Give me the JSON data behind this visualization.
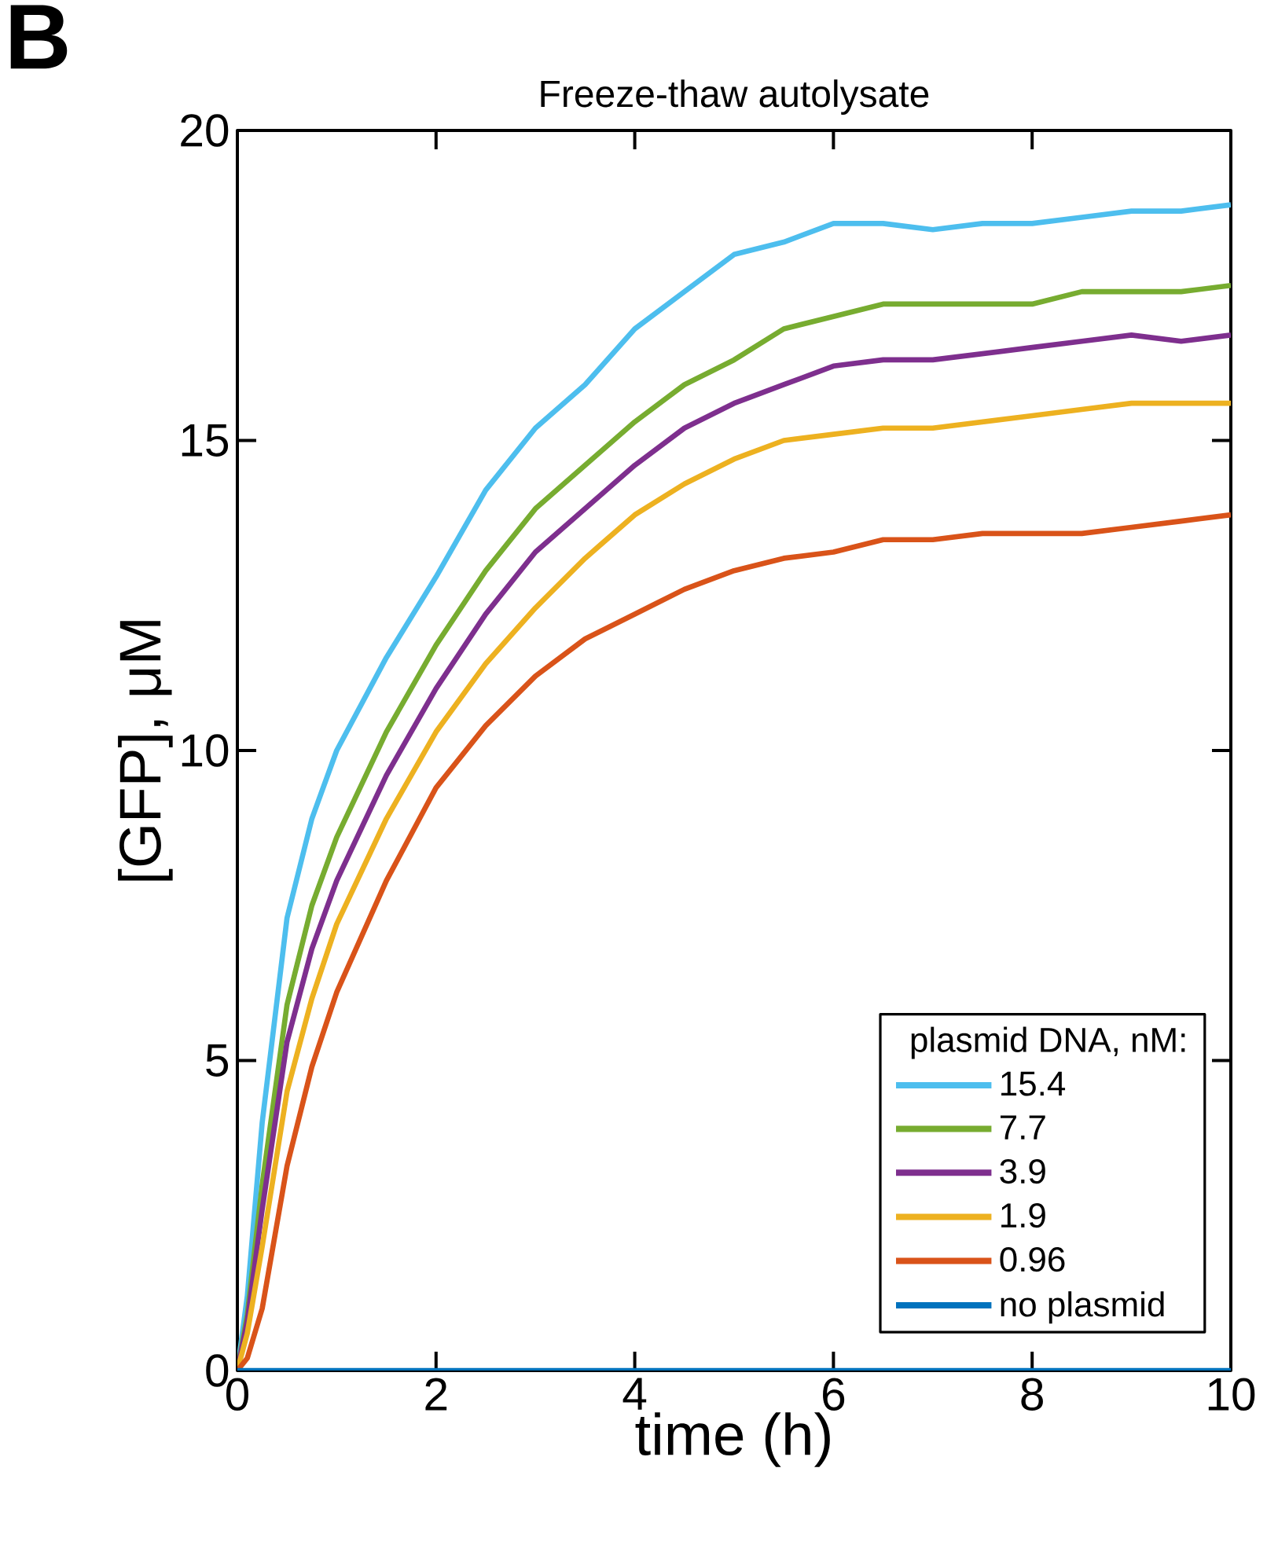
{
  "chart_data": {
    "type": "line",
    "title": "Freeze-thaw autolysate",
    "xlabel": "time (h)",
    "ylabel": "[GFP], μM",
    "legend_title": "plasmid DNA, nM:",
    "annotations": [
      "B"
    ],
    "x": [
      0,
      0.1,
      0.25,
      0.5,
      0.75,
      1,
      1.5,
      2,
      2.5,
      3,
      3.5,
      4,
      4.5,
      5,
      5.5,
      6,
      6.5,
      7,
      7.5,
      8,
      8.5,
      9,
      9.5,
      10
    ],
    "series": [
      {
        "name": "15.4",
        "color": "#4dbeee",
        "values": [
          0,
          1.2,
          4.0,
          7.3,
          8.9,
          10.0,
          11.5,
          12.8,
          14.2,
          15.2,
          15.9,
          16.8,
          17.4,
          18.0,
          18.2,
          18.5,
          18.5,
          18.4,
          18.5,
          18.5,
          18.6,
          18.7,
          18.7,
          18.8
        ]
      },
      {
        "name": "7.7",
        "color": "#77ac30",
        "values": [
          0,
          0.9,
          3.0,
          5.9,
          7.5,
          8.6,
          10.3,
          11.7,
          12.9,
          13.9,
          14.6,
          15.3,
          15.9,
          16.3,
          16.8,
          17.0,
          17.2,
          17.2,
          17.2,
          17.2,
          17.4,
          17.4,
          17.4,
          17.5
        ]
      },
      {
        "name": "3.9",
        "color": "#7e2f8e",
        "values": [
          0,
          0.8,
          2.6,
          5.3,
          6.8,
          7.9,
          9.6,
          11.0,
          12.2,
          13.2,
          13.9,
          14.6,
          15.2,
          15.6,
          15.9,
          16.2,
          16.3,
          16.3,
          16.4,
          16.5,
          16.6,
          16.7,
          16.6,
          16.7
        ]
      },
      {
        "name": "1.9",
        "color": "#edb120",
        "values": [
          0,
          0.6,
          2.0,
          4.5,
          6.0,
          7.2,
          8.9,
          10.3,
          11.4,
          12.3,
          13.1,
          13.8,
          14.3,
          14.7,
          15.0,
          15.1,
          15.2,
          15.2,
          15.3,
          15.4,
          15.5,
          15.6,
          15.6,
          15.6
        ]
      },
      {
        "name": "0.96",
        "color": "#d95319",
        "values": [
          0,
          0.2,
          1.0,
          3.3,
          4.9,
          6.1,
          7.9,
          9.4,
          10.4,
          11.2,
          11.8,
          12.2,
          12.6,
          12.9,
          13.1,
          13.2,
          13.4,
          13.4,
          13.5,
          13.5,
          13.5,
          13.6,
          13.7,
          13.8
        ]
      },
      {
        "name": "no plasmid",
        "color": "#0072bd",
        "values": [
          0,
          0,
          0,
          0,
          0,
          0,
          0,
          0,
          0,
          0,
          0,
          0,
          0,
          0,
          0,
          0,
          0,
          0,
          0,
          0,
          0,
          0,
          0,
          0
        ]
      }
    ],
    "xlim": [
      0,
      10
    ],
    "ylim": [
      0,
      20
    ],
    "xticks": [
      0,
      2,
      4,
      6,
      8,
      10
    ],
    "yticks": [
      0,
      5,
      10,
      15,
      20
    ],
    "grid": false,
    "legend": "bottom right",
    "marker": "none",
    "line_style": "solid"
  }
}
